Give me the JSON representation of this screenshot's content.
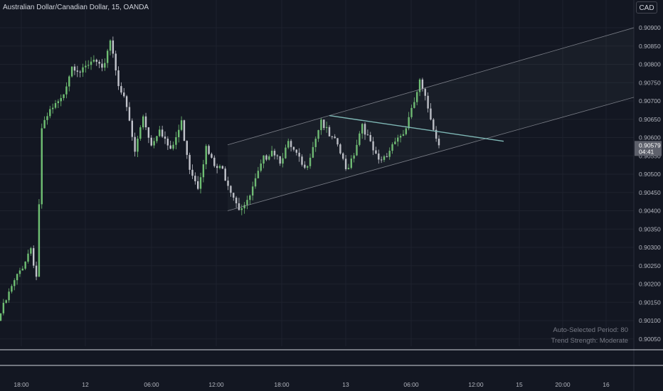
{
  "header": {
    "title": "Australian Dollar/Canadian Dollar, 15, OANDA",
    "currency_button": "CAD"
  },
  "indicator_info": {
    "period_label": "Auto-Selected Period: 80",
    "strength_label": "Trend Strength: Moderate"
  },
  "colors": {
    "background": "#131722",
    "grid": "#1e222d",
    "candle_up": "#6fbf73",
    "candle_down": "#c2c4cc",
    "channel_line": "#9598a1",
    "trend_line": "#7fb8b6",
    "price_tag": "#5d606b"
  },
  "current_price": {
    "value": "0.90579",
    "countdown": "04:41"
  },
  "chart_data": {
    "type": "candlestick",
    "y_axis": {
      "ticks": [
        "0.90900",
        "0.90850",
        "0.90800",
        "0.90750",
        "0.90700",
        "0.90650",
        "0.90600",
        "0.90550",
        "0.90500",
        "0.90450",
        "0.90400",
        "0.90350",
        "0.90300",
        "0.90250",
        "0.90200",
        "0.90150",
        "0.90100",
        "0.90050"
      ],
      "range": [
        0.90035,
        0.90915
      ]
    },
    "x_axis": {
      "ticks": [
        "18:00",
        "12",
        "06:00",
        "12:00",
        "18:00",
        "13",
        "06:00",
        "12:00",
        "15",
        "20:00",
        "16"
      ]
    },
    "keypoints": [
      [
        0,
        0.9012
      ],
      [
        4,
        0.9019
      ],
      [
        8,
        0.9025
      ],
      [
        11,
        0.903
      ],
      [
        13,
        0.9022
      ],
      [
        15,
        0.9062
      ],
      [
        18,
        0.9067
      ],
      [
        22,
        0.907
      ],
      [
        26,
        0.908
      ],
      [
        30,
        0.9078
      ],
      [
        34,
        0.9081
      ],
      [
        37,
        0.9078
      ],
      [
        40,
        0.9087
      ],
      [
        43,
        0.9075
      ],
      [
        46,
        0.9068
      ],
      [
        49,
        0.9056
      ],
      [
        52,
        0.9066
      ],
      [
        55,
        0.9058
      ],
      [
        58,
        0.9063
      ],
      [
        62,
        0.9056
      ],
      [
        66,
        0.9064
      ],
      [
        69,
        0.9052
      ],
      [
        72,
        0.9047
      ],
      [
        75,
        0.9057
      ],
      [
        78,
        0.9052
      ],
      [
        81,
        0.9051
      ],
      [
        84,
        0.9046
      ],
      [
        87,
        0.9041
      ],
      [
        90,
        0.9042
      ],
      [
        93,
        0.9048
      ],
      [
        96,
        0.9054
      ],
      [
        99,
        0.9057
      ],
      [
        102,
        0.9054
      ],
      [
        105,
        0.9058
      ],
      [
        108,
        0.9055
      ],
      [
        111,
        0.9051
      ],
      [
        114,
        0.9058
      ],
      [
        117,
        0.9065
      ],
      [
        120,
        0.906
      ],
      [
        123,
        0.9058
      ],
      [
        126,
        0.9051
      ],
      [
        129,
        0.9056
      ],
      [
        132,
        0.9064
      ],
      [
        135,
        0.9058
      ],
      [
        138,
        0.9053
      ],
      [
        141,
        0.9055
      ],
      [
        144,
        0.906
      ],
      [
        147,
        0.9061
      ],
      [
        150,
        0.9067
      ],
      [
        153,
        0.9075
      ],
      [
        156,
        0.9068
      ],
      [
        158,
        0.9063
      ],
      [
        160,
        0.9058
      ]
    ],
    "channel": {
      "upper": [
        [
          0.9058,
          0.9059
        ],
        [
          1.0,
          0.909
        ]
      ],
      "lower": [
        [
          0.904,
          0.9039
        ],
        [
          1.0,
          0.9071
        ]
      ],
      "start_fraction": 0.344
    },
    "trend_line": [
      [
        0.9066,
        0.9066
      ],
      [
        0.9059,
        0.9059
      ]
    ]
  }
}
